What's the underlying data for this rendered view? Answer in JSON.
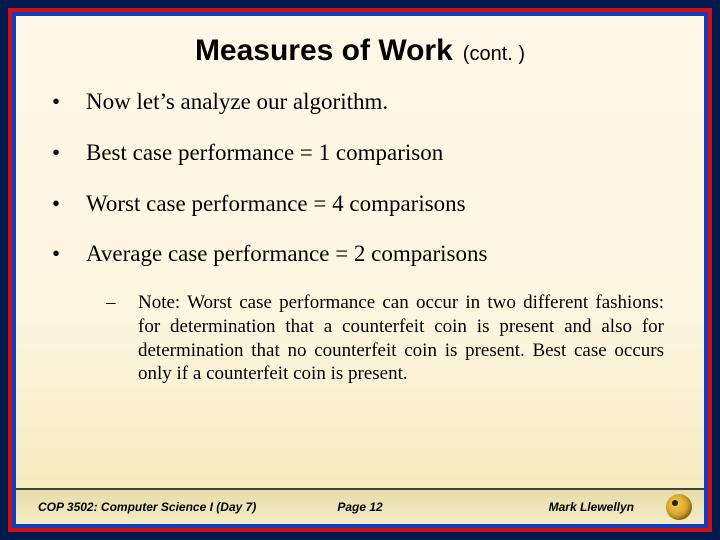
{
  "title": {
    "main": "Measures of Work",
    "sub": "(cont. )"
  },
  "bullets": [
    "Now let’s analyze our algorithm.",
    "Best case performance =  1 comparison",
    "Worst case performance = 4 comparisons",
    "Average case performance = 2 comparisons"
  ],
  "subnote": "Note: Worst case performance can occur in two different fashions: for determination that a counterfeit coin is present and also for determination that no counterfeit coin is present.  Best case occurs only if a counterfeit coin is present.",
  "footer": {
    "left": "COP 3502: Computer Science I  (Day 7)",
    "center": "Page 12",
    "right": "Mark Llewellyn"
  },
  "colors": {
    "outer_border": "#001a4d",
    "mid_border": "#d01010",
    "inner_border": "#1040c0",
    "bg_top": "#fff8e8",
    "bg_bottom": "#f5e8b8"
  }
}
